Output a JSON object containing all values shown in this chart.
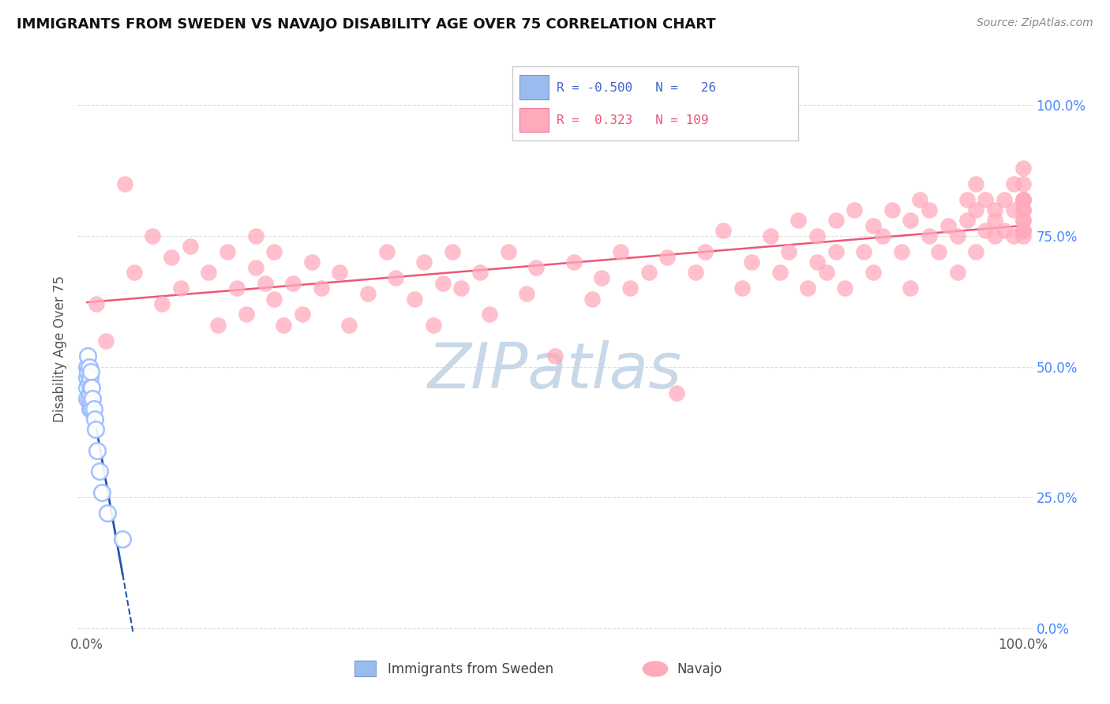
{
  "title": "IMMIGRANTS FROM SWEDEN VS NAVAJO DISABILITY AGE OVER 75 CORRELATION CHART",
  "source_text": "Source: ZipAtlas.com",
  "ylabel": "Disability Age Over 75",
  "legend_sweden_label": "Immigrants from Sweden",
  "legend_navajo_label": "Navajo",
  "sweden_scatter_color": "#99bbff",
  "navajo_scatter_color": "#ffaabb",
  "sweden_line_color": "#2255aa",
  "navajo_line_color": "#ee5577",
  "legend_blue_color": "#99bbee",
  "legend_pink_color": "#ffaabb",
  "legend_blue_text": "#4466cc",
  "legend_pink_text": "#ee5577",
  "right_axis_color": "#4488ff",
  "background_color": "#ffffff",
  "grid_color": "#dddddd",
  "watermark_color": "#c8d8e8",
  "title_fontsize": 13,
  "figsize": [
    14.06,
    8.92
  ],
  "dpi": 100,
  "xlim": [
    0.0,
    1.0
  ],
  "ylim": [
    0.0,
    1.0
  ],
  "x_sweden": [
    0.0,
    0.0,
    0.0,
    0.0,
    0.001,
    0.001,
    0.002,
    0.002,
    0.002,
    0.003,
    0.003,
    0.003,
    0.004,
    0.004,
    0.004,
    0.005,
    0.005,
    0.006,
    0.007,
    0.008,
    0.009,
    0.011,
    0.013,
    0.016,
    0.022,
    0.038
  ],
  "y_sweden": [
    0.5,
    0.48,
    0.46,
    0.44,
    0.52,
    0.49,
    0.5,
    0.47,
    0.44,
    0.48,
    0.45,
    0.42,
    0.49,
    0.46,
    0.43,
    0.46,
    0.42,
    0.44,
    0.42,
    0.4,
    0.38,
    0.34,
    0.3,
    0.26,
    0.22,
    0.17
  ],
  "x_navajo": [
    0.01,
    0.02,
    0.04,
    0.05,
    0.07,
    0.08,
    0.09,
    0.1,
    0.11,
    0.13,
    0.14,
    0.15,
    0.16,
    0.17,
    0.18,
    0.18,
    0.19,
    0.2,
    0.2,
    0.21,
    0.22,
    0.23,
    0.24,
    0.25,
    0.27,
    0.28,
    0.3,
    0.32,
    0.33,
    0.35,
    0.36,
    0.37,
    0.38,
    0.39,
    0.4,
    0.42,
    0.43,
    0.45,
    0.47,
    0.48,
    0.5,
    0.52,
    0.54,
    0.55,
    0.57,
    0.58,
    0.6,
    0.62,
    0.63,
    0.65,
    0.66,
    0.68,
    0.7,
    0.71,
    0.73,
    0.74,
    0.75,
    0.76,
    0.77,
    0.78,
    0.78,
    0.79,
    0.8,
    0.8,
    0.81,
    0.82,
    0.83,
    0.84,
    0.84,
    0.85,
    0.86,
    0.87,
    0.88,
    0.88,
    0.89,
    0.9,
    0.9,
    0.91,
    0.92,
    0.93,
    0.93,
    0.94,
    0.94,
    0.95,
    0.95,
    0.95,
    0.96,
    0.96,
    0.97,
    0.97,
    0.97,
    0.98,
    0.98,
    0.99,
    0.99,
    0.99,
    1.0,
    1.0,
    1.0,
    1.0,
    1.0,
    1.0,
    1.0,
    1.0,
    1.0,
    1.0,
    1.0,
    1.0,
    1.0
  ],
  "y_navajo": [
    0.62,
    0.55,
    0.85,
    0.68,
    0.75,
    0.62,
    0.71,
    0.65,
    0.73,
    0.68,
    0.58,
    0.72,
    0.65,
    0.6,
    0.69,
    0.75,
    0.66,
    0.63,
    0.72,
    0.58,
    0.66,
    0.6,
    0.7,
    0.65,
    0.68,
    0.58,
    0.64,
    0.72,
    0.67,
    0.63,
    0.7,
    0.58,
    0.66,
    0.72,
    0.65,
    0.68,
    0.6,
    0.72,
    0.64,
    0.69,
    0.52,
    0.7,
    0.63,
    0.67,
    0.72,
    0.65,
    0.68,
    0.71,
    0.45,
    0.68,
    0.72,
    0.76,
    0.65,
    0.7,
    0.75,
    0.68,
    0.72,
    0.78,
    0.65,
    0.7,
    0.75,
    0.68,
    0.72,
    0.78,
    0.65,
    0.8,
    0.72,
    0.77,
    0.68,
    0.75,
    0.8,
    0.72,
    0.78,
    0.65,
    0.82,
    0.75,
    0.8,
    0.72,
    0.77,
    0.68,
    0.75,
    0.82,
    0.78,
    0.72,
    0.8,
    0.85,
    0.76,
    0.82,
    0.75,
    0.8,
    0.78,
    0.76,
    0.82,
    0.75,
    0.8,
    0.85,
    0.78,
    0.82,
    0.76,
    0.8,
    0.85,
    0.75,
    0.82,
    0.76,
    0.8,
    0.88,
    0.78,
    0.82,
    0.76
  ]
}
